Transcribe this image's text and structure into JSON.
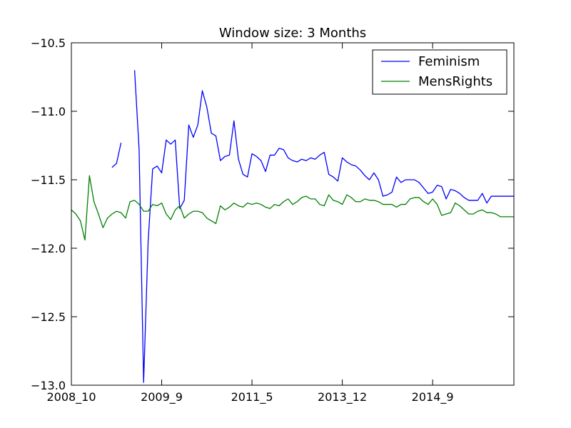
{
  "chart_data": {
    "type": "line",
    "title": "Window size: 3 Months",
    "xlabel": "",
    "ylabel": "",
    "x_ticks": [
      "2008_10",
      "2009_9",
      "2011_5",
      "2013_12",
      "2014_9"
    ],
    "x_tick_positions": [
      0,
      20,
      40,
      60,
      80
    ],
    "x_range": [
      0,
      98
    ],
    "y_ticks": [
      "−10.5",
      "−11.0",
      "−11.5",
      "−12.0",
      "−12.5",
      "−13.0"
    ],
    "y_tick_values": [
      -10.5,
      -11.0,
      -11.5,
      -12.0,
      -12.5,
      -13.0
    ],
    "ylim": [
      -13.0,
      -10.5
    ],
    "grid": false,
    "legend_placement": "top-right",
    "series": [
      {
        "name": "Feminism",
        "color": "#0000ff",
        "x": [
          9,
          10,
          11,
          14,
          15,
          16,
          17,
          18,
          19,
          20,
          21,
          22,
          23,
          24,
          25,
          26,
          27,
          28,
          29,
          30,
          31,
          32,
          33,
          34,
          35,
          36,
          37,
          38,
          39,
          40,
          41,
          42,
          43,
          44,
          45,
          46,
          47,
          48,
          49,
          50,
          51,
          52,
          53,
          54,
          55,
          56,
          57,
          58,
          59,
          60,
          61,
          62,
          63,
          64,
          65,
          66,
          67,
          68,
          69,
          70,
          71,
          72,
          73,
          74,
          75,
          76,
          77,
          78,
          79,
          80,
          81,
          82,
          83,
          84,
          85,
          86,
          87,
          88,
          89,
          90,
          91,
          92,
          93,
          94,
          95,
          96,
          97,
          98
        ],
        "values": [
          -11.41,
          -11.38,
          -11.23,
          -10.7,
          -11.28,
          -12.98,
          -11.95,
          -11.42,
          -11.4,
          -11.45,
          -11.21,
          -11.24,
          -11.21,
          -11.71,
          -11.65,
          -11.1,
          -11.19,
          -11.1,
          -10.85,
          -10.97,
          -11.16,
          -11.18,
          -11.36,
          -11.33,
          -11.32,
          -11.07,
          -11.35,
          -11.46,
          -11.48,
          -11.31,
          -11.33,
          -11.36,
          -11.44,
          -11.32,
          -11.32,
          -11.27,
          -11.28,
          -11.34,
          -11.36,
          -11.37,
          -11.35,
          -11.36,
          -11.34,
          -11.35,
          -11.32,
          -11.3,
          -11.46,
          -11.48,
          -11.51,
          -11.34,
          -11.37,
          -11.39,
          -11.4,
          -11.43,
          -11.47,
          -11.5,
          -11.45,
          -11.5,
          -11.62,
          -11.61,
          -11.59,
          -11.48,
          -11.52,
          -11.5,
          -11.5,
          -11.5,
          -11.52,
          -11.56,
          -11.6,
          -11.59,
          -11.54,
          -11.55,
          -11.64,
          -11.57,
          -11.58,
          -11.6,
          -11.63,
          -11.65,
          -11.65,
          -11.65,
          -11.6,
          -11.67,
          -11.62,
          -11.62,
          -11.62,
          -11.62,
          -11.62,
          -11.62
        ]
      },
      {
        "name": "MensRights",
        "color": "#008000",
        "x": [
          0,
          1,
          2,
          3,
          4,
          5,
          6,
          7,
          8,
          9,
          10,
          11,
          12,
          13,
          14,
          15,
          16,
          17,
          18,
          19,
          20,
          21,
          22,
          23,
          24,
          25,
          26,
          27,
          28,
          29,
          30,
          31,
          32,
          33,
          34,
          35,
          36,
          37,
          38,
          39,
          40,
          41,
          42,
          43,
          44,
          45,
          46,
          47,
          48,
          49,
          50,
          51,
          52,
          53,
          54,
          55,
          56,
          57,
          58,
          59,
          60,
          61,
          62,
          63,
          64,
          65,
          66,
          67,
          68,
          69,
          70,
          71,
          72,
          73,
          74,
          75,
          76,
          77,
          78,
          79,
          80,
          81,
          82,
          83,
          84,
          85,
          86,
          87,
          88,
          89,
          90,
          91,
          92,
          93,
          94,
          95,
          96,
          97,
          98
        ],
        "values": [
          -11.72,
          -11.75,
          -11.8,
          -11.94,
          -11.47,
          -11.66,
          -11.75,
          -11.85,
          -11.78,
          -11.75,
          -11.73,
          -11.74,
          -11.78,
          -11.66,
          -11.65,
          -11.68,
          -11.73,
          -11.73,
          -11.68,
          -11.69,
          -11.67,
          -11.75,
          -11.79,
          -11.72,
          -11.69,
          -11.78,
          -11.75,
          -11.73,
          -11.73,
          -11.74,
          -11.78,
          -11.8,
          -11.82,
          -11.69,
          -11.72,
          -11.7,
          -11.67,
          -11.69,
          -11.7,
          -11.67,
          -11.68,
          -11.67,
          -11.68,
          -11.7,
          -11.71,
          -11.68,
          -11.69,
          -11.66,
          -11.64,
          -11.68,
          -11.66,
          -11.63,
          -11.62,
          -11.64,
          -11.64,
          -11.68,
          -11.69,
          -11.61,
          -11.65,
          -11.66,
          -11.68,
          -11.61,
          -11.63,
          -11.66,
          -11.66,
          -11.64,
          -11.65,
          -11.65,
          -11.66,
          -11.68,
          -11.68,
          -11.68,
          -11.7,
          -11.68,
          -11.68,
          -11.64,
          -11.63,
          -11.63,
          -11.66,
          -11.68,
          -11.64,
          -11.68,
          -11.76,
          -11.75,
          -11.74,
          -11.67,
          -11.69,
          -11.72,
          -11.75,
          -11.75,
          -11.73,
          -11.72,
          -11.74,
          -11.74,
          -11.75,
          -11.77,
          -11.77,
          -11.77,
          -11.77
        ]
      }
    ]
  }
}
